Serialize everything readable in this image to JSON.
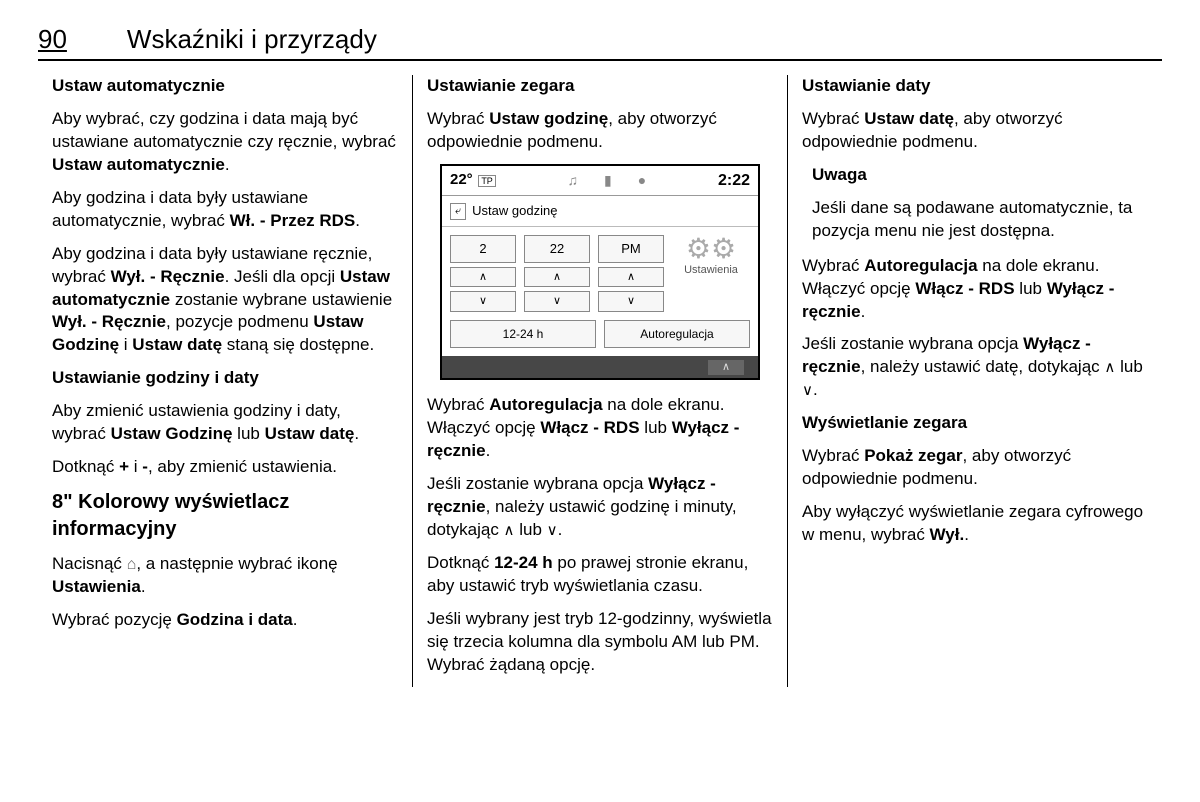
{
  "page_number": "90",
  "chapter_title": "Wskaźniki i przyrządy",
  "col1": {
    "s1_title": "Ustaw automatycznie",
    "s1_p1a": "Aby wybrać, czy godzina i data mają być ustawiane automatycznie czy ręcznie, wybrać ",
    "s1_p1b": "Ustaw automatycznie",
    "s1_p1c": ".",
    "s1_p2a": "Aby godzina i data były ustawiane automatycznie, wybrać ",
    "s1_p2b": "Wł. - Przez RDS",
    "s1_p2c": ".",
    "s1_p3a": "Aby godzina i data były ustawiane ręcznie, wybrać ",
    "s1_p3b": "Wył. - Ręcznie",
    "s1_p3c": ". Jeśli dla opcji ",
    "s1_p3d": "Ustaw automatycznie",
    "s1_p3e": " zostanie wybrane ustawienie ",
    "s1_p3f": "Wył. - Ręcznie",
    "s1_p3g": ", pozycje podmenu ",
    "s1_p3h": "Ustaw Godzinę",
    "s1_p3i": " i ",
    "s1_p3j": "Ustaw datę",
    "s1_p3k": " staną się dostępne.",
    "s2_title": "Ustawianie godziny i daty",
    "s2_p1a": "Aby zmienić ustawienia godziny i daty, wybrać ",
    "s2_p1b": "Ustaw Godzinę",
    "s2_p1c": " lub ",
    "s2_p1d": "Ustaw datę",
    "s2_p1e": ".",
    "s2_p2a": "Dotknąć ",
    "s2_p2b": "+",
    "s2_p2c": " i ",
    "s2_p2d": "-",
    "s2_p2e": ", aby zmienić ustawienia.",
    "s3_title": "8\" Kolorowy wyświetlacz informacyjny",
    "s3_p1a": "Nacisnąć ",
    "s3_p1b": ", a następnie wybrać ikonę ",
    "s3_p1c": "Ustawienia",
    "s3_p1d": ".",
    "s3_p2a": "Wybrać pozycję ",
    "s3_p2b": "Godzina i data",
    "s3_p2c": "."
  },
  "col2": {
    "s1_title": "Ustawianie zegara",
    "s1_p1a": "Wybrać ",
    "s1_p1b": "Ustaw godzinę",
    "s1_p1c": ", aby otworzyć odpowiednie podmenu.",
    "screen": {
      "temp": "22°",
      "tp": "TP",
      "clock": "2:22",
      "crumb": "Ustaw godzinę",
      "back": "⤶",
      "hour": "2",
      "minute": "22",
      "ampm": "PM",
      "side_label": "Ustawienia",
      "btn1": "12-24 h",
      "btn2": "Autoregulacja",
      "up": "∧",
      "down": "∨",
      "footer_up": "∧"
    },
    "s2_p1a": "Wybrać ",
    "s2_p1b": "Autoregulacja",
    "s2_p1c": " na dole ekranu. Włączyć opcję ",
    "s2_p1d": "Włącz - RDS",
    "s2_p1e": " lub ",
    "s2_p1f": "Wyłącz - ręcznie",
    "s2_p1g": ".",
    "s2_p2a": "Jeśli zostanie wybrana opcja ",
    "s2_p2b": "Wyłącz - ręcznie",
    "s2_p2c": ", należy ustawić godzinę i minuty, dotykając ",
    "s2_p2d": " lub ",
    "s2_p2e": ".",
    "s2_p3a": "Dotknąć ",
    "s2_p3b": "12-24 h",
    "s2_p3c": " po prawej stronie ekranu, aby ustawić tryb wyświetlania czasu.",
    "s2_p4": "Jeśli wybrany jest tryb 12-godzinny, wyświetla się trzecia kolumna dla symbolu AM lub PM. Wybrać żądaną opcję."
  },
  "col3": {
    "s1_title": "Ustawianie daty",
    "s1_p1a": "Wybrać ",
    "s1_p1b": "Ustaw datę",
    "s1_p1c": ", aby otworzyć odpowiednie podmenu.",
    "note_title": "Uwaga",
    "note_body": "Jeśli dane są podawane automatycznie, ta pozycja menu nie jest dostępna.",
    "s2_p1a": "Wybrać ",
    "s2_p1b": "Autoregulacja",
    "s2_p1c": " na dole ekranu. Włączyć opcję ",
    "s2_p1d": "Włącz - RDS",
    "s2_p1e": " lub ",
    "s2_p1f": "Wyłącz - ręcznie",
    "s2_p1g": ".",
    "s2_p2a": "Jeśli zostanie wybrana opcja ",
    "s2_p2b": "Wyłącz - ręcznie",
    "s2_p2c": ", należy ustawić datę, dotykając ",
    "s2_p2d": " lub ",
    "s2_p2e": ".",
    "s3_title": "Wyświetlanie zegara",
    "s3_p1a": "Wybrać ",
    "s3_p1b": "Pokaż zegar",
    "s3_p1c": ", aby otworzyć odpowiednie podmenu.",
    "s3_p2a": "Aby wyłączyć wyświetlanie zegara cyfrowego w menu, wybrać ",
    "s3_p2b": "Wył.",
    "s3_p2c": "."
  }
}
